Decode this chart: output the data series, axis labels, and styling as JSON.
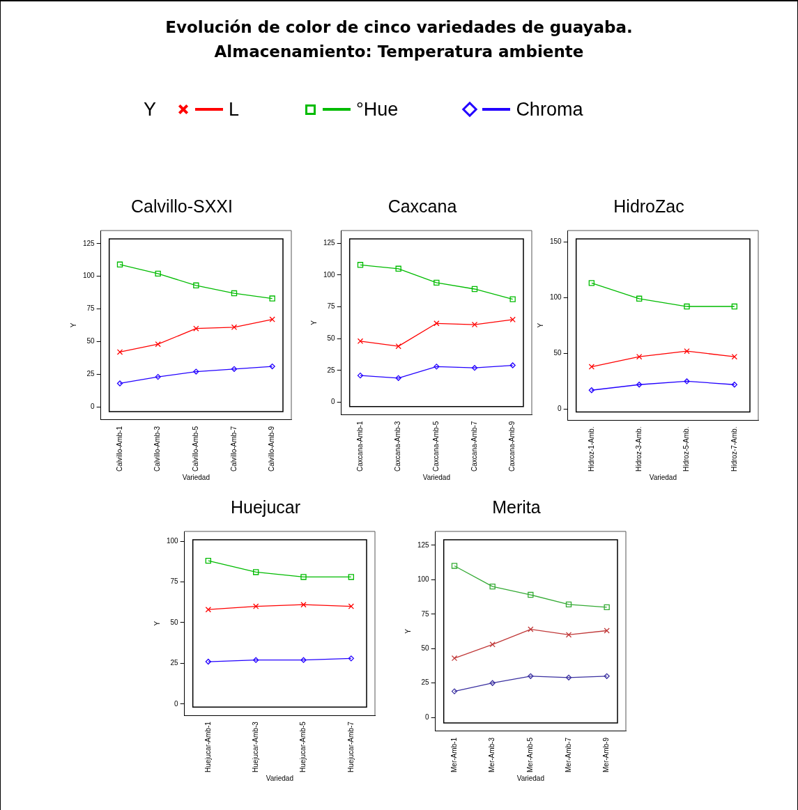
{
  "chart_data": [
    {
      "type": "line",
      "title": "Evolución de color de cinco variedades de guayaba.\nAlmacenamiento: Temperatura ambiente",
      "subtitle": "Calvillo-SXXI",
      "legend_title": "Y",
      "legend": "top",
      "xlabel": "Variedad",
      "ylabel": "Y",
      "categories": [
        "Calvillo-Amb-1",
        "Calvillo-Amb-3",
        "Calvillo-Amb-5",
        "Calvillo-Amb-7",
        "Calvillo-Amb-9"
      ],
      "ylim": [
        -10,
        135
      ],
      "yticks": [
        0,
        25,
        50,
        75,
        100,
        125
      ],
      "grid": false,
      "series": [
        {
          "name": "L",
          "color": "#ff0000",
          "marker": "cross",
          "values": [
            42,
            48,
            60,
            61,
            67
          ]
        },
        {
          "name": "°Hue",
          "color": "#00bb00",
          "marker": "square",
          "values": [
            109,
            102,
            93,
            87,
            83
          ]
        },
        {
          "name": "Chroma",
          "color": "#2200ff",
          "marker": "diamond",
          "values": [
            18,
            23,
            27,
            29,
            31
          ]
        }
      ]
    },
    {
      "type": "line",
      "subtitle": "Caxcana",
      "xlabel": "Variedad",
      "ylabel": "Y",
      "categories": [
        "Caxcana-Amb-1",
        "Caxcana-Amb-3",
        "Caxcana-Amb-5",
        "Caxcana-Amb-7",
        "Caxcana-Amb-9"
      ],
      "ylim": [
        -10,
        135
      ],
      "yticks": [
        0,
        25,
        50,
        75,
        100,
        125
      ],
      "grid": false,
      "series": [
        {
          "color": "#ff0000",
          "marker": "cross",
          "values": [
            48,
            44,
            62,
            61,
            65
          ]
        },
        {
          "color": "#00bb00",
          "marker": "square",
          "values": [
            108,
            105,
            94,
            89,
            81
          ]
        },
        {
          "color": "#2200ff",
          "marker": "diamond",
          "values": [
            21,
            19,
            28,
            27,
            29
          ]
        }
      ]
    },
    {
      "type": "line",
      "subtitle": "HidroZac",
      "xlabel": "Variedad",
      "ylabel": "Y",
      "categories": [
        "Hidroz-1-Amb.",
        "Hidroz-3-Amb.",
        "Hidroz-5-Amb.",
        "Hidroz-7-Amb."
      ],
      "ylim": [
        -10,
        160
      ],
      "yticks": [
        0,
        50,
        100,
        150
      ],
      "grid": false,
      "series": [
        {
          "color": "#ff0000",
          "marker": "cross",
          "values": [
            38,
            47,
            52,
            47
          ]
        },
        {
          "color": "#00bb00",
          "marker": "square",
          "values": [
            113,
            99,
            92,
            92
          ]
        },
        {
          "color": "#2200ff",
          "marker": "diamond",
          "values": [
            17,
            22,
            25,
            22
          ]
        }
      ]
    },
    {
      "type": "line",
      "subtitle": "Huejucar",
      "xlabel": "Variedad",
      "ylabel": "Y",
      "categories": [
        "Huejucar-Amb-1",
        "Huejucar-Amb-3",
        "Huejucar-Amb-5",
        "Huejucar-Amb-7"
      ],
      "ylim": [
        -7,
        106
      ],
      "yticks": [
        0,
        25,
        50,
        75,
        100
      ],
      "grid": false,
      "series": [
        {
          "color": "#ff0000",
          "marker": "cross",
          "values": [
            58,
            60,
            61,
            60
          ]
        },
        {
          "color": "#00bb00",
          "marker": "square",
          "values": [
            88,
            81,
            78,
            78
          ]
        },
        {
          "color": "#2200ff",
          "marker": "diamond",
          "values": [
            26,
            27,
            27,
            28
          ]
        }
      ]
    },
    {
      "type": "line",
      "subtitle": "Merita",
      "xlabel": "Variedad",
      "ylabel": "Y",
      "categories": [
        "Mer-Amb-1",
        "Mer-Amb-3",
        "Mer-Amb-5",
        "Mer-Amb-7",
        "Mer-Amb-9"
      ],
      "ylim": [
        -10,
        135
      ],
      "yticks": [
        0,
        25,
        50,
        75,
        100,
        125
      ],
      "grid": false,
      "series": [
        {
          "color": "#c03838",
          "marker": "cross",
          "values": [
            43,
            53,
            64,
            60,
            63
          ]
        },
        {
          "color": "#33aa33",
          "marker": "square",
          "values": [
            110,
            95,
            89,
            82,
            80
          ]
        },
        {
          "color": "#3a30a0",
          "marker": "diamond",
          "values": [
            19,
            25,
            30,
            29,
            30
          ]
        }
      ]
    }
  ]
}
